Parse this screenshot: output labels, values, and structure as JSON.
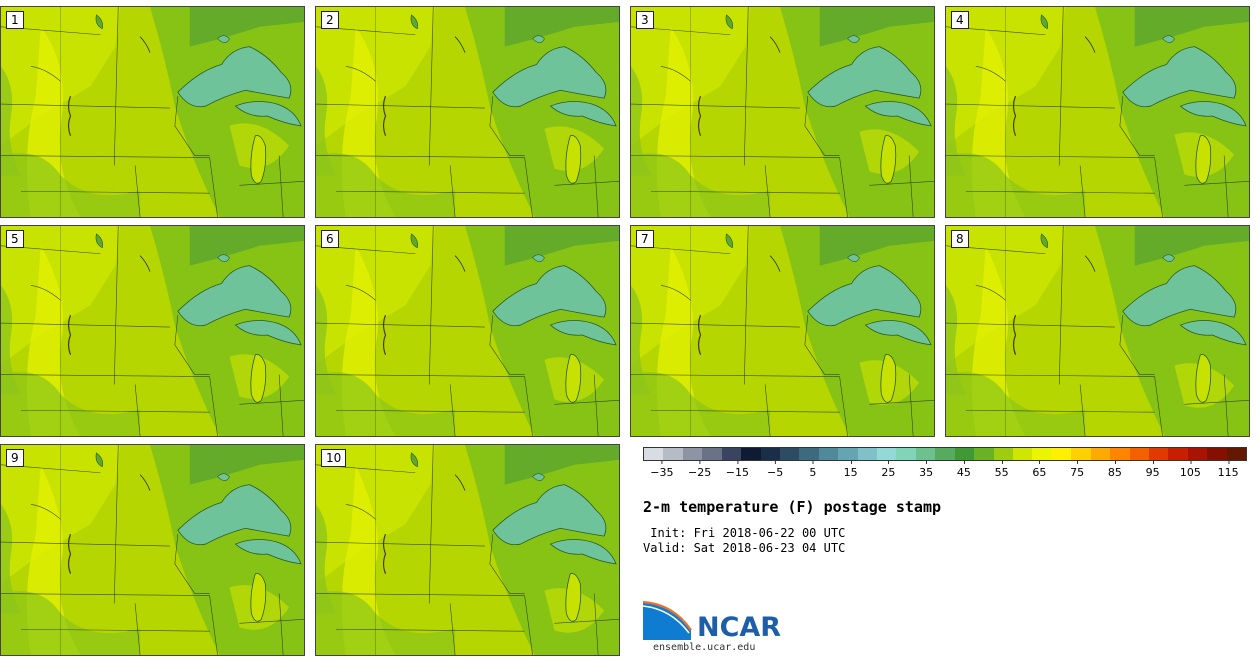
{
  "panels": [
    {
      "id": "1"
    },
    {
      "id": "2"
    },
    {
      "id": "3"
    },
    {
      "id": "4"
    },
    {
      "id": "5"
    },
    {
      "id": "6"
    },
    {
      "id": "7"
    },
    {
      "id": "8"
    },
    {
      "id": "9"
    },
    {
      "id": "10"
    }
  ],
  "colorbar": {
    "colors": [
      "#d9dde3",
      "#b6bcc6",
      "#8d94a4",
      "#6a7288",
      "#3a4460",
      "#0f1a33",
      "#1b2e47",
      "#2d4c63",
      "#3d6a7f",
      "#4e8a9a",
      "#65a5b1",
      "#7fc1c6",
      "#93dad6",
      "#80d4b7",
      "#6cc18e",
      "#56ab5e",
      "#3f9a34",
      "#68b223",
      "#9dcc10",
      "#cfe600",
      "#ecf500",
      "#fff000",
      "#ffd000",
      "#ffaa00",
      "#ff8400",
      "#f36000",
      "#e03a00",
      "#c62000",
      "#a81400",
      "#861000",
      "#641800"
    ],
    "ticks": [
      "−35",
      "−25",
      "−15",
      "−5",
      "5",
      "15",
      "25",
      "35",
      "45",
      "55",
      "65",
      "75",
      "85",
      "95",
      "105",
      "115"
    ],
    "tick_values": [
      -35,
      -25,
      -15,
      -5,
      5,
      15,
      25,
      35,
      45,
      55,
      65,
      75,
      85,
      95,
      105,
      115
    ],
    "min": -40,
    "max": 120
  },
  "title": "2-m temperature (F) postage stamp",
  "init": " Init: Fri 2018-06-22 00 UTC",
  "valid": "Valid: Sat 2018-06-23 04 UTC",
  "logo": {
    "text": "NCAR",
    "brand_blue": "#1d5ea8",
    "accent_orange": "#e8742a"
  },
  "site": "ensemble.ucar.edu"
}
